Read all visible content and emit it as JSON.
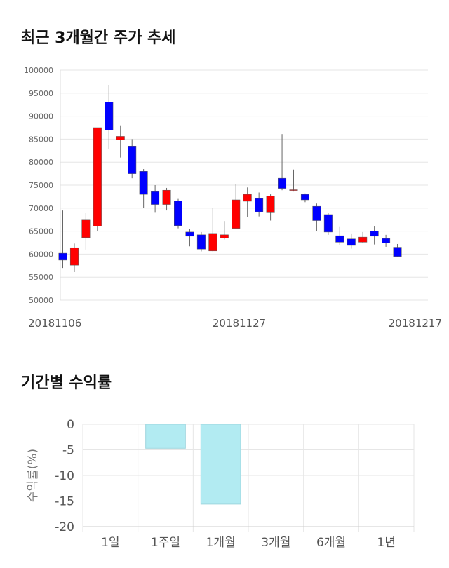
{
  "titles": {
    "price_trend": "최근 3개월간 주가 추세",
    "returns": "기간별 수익률"
  },
  "chart_data": [
    {
      "type": "candlestick",
      "title": "최근 3개월간 주가 추세",
      "ylim": [
        50000,
        100000
      ],
      "yticks": [
        50000,
        55000,
        60000,
        65000,
        70000,
        75000,
        80000,
        85000,
        90000,
        95000,
        100000
      ],
      "xtick_labels": [
        "20181106",
        "20181127",
        "20181217"
      ],
      "colors": {
        "up": "#ff0000",
        "down": "#0000ff",
        "wick": "#666666",
        "grid": "#e6e6e6"
      },
      "candles": [
        {
          "o": 60200,
          "h": 69500,
          "l": 57000,
          "c": 58700
        },
        {
          "o": 57600,
          "h": 62300,
          "l": 56100,
          "c": 61400
        },
        {
          "o": 63600,
          "h": 68900,
          "l": 61000,
          "c": 67400
        },
        {
          "o": 66100,
          "h": 87500,
          "l": 65000,
          "c": 87500
        },
        {
          "o": 93100,
          "h": 96800,
          "l": 82800,
          "c": 87000
        },
        {
          "o": 84800,
          "h": 88000,
          "l": 81000,
          "c": 85600
        },
        {
          "o": 83500,
          "h": 85000,
          "l": 76500,
          "c": 77500
        },
        {
          "o": 78000,
          "h": 78500,
          "l": 70000,
          "c": 73000
        },
        {
          "o": 73600,
          "h": 75000,
          "l": 69000,
          "c": 70800
        },
        {
          "o": 70800,
          "h": 74400,
          "l": 69500,
          "c": 73900
        },
        {
          "o": 71600,
          "h": 72000,
          "l": 65600,
          "c": 66200
        },
        {
          "o": 64800,
          "h": 65400,
          "l": 61700,
          "c": 63900
        },
        {
          "o": 64200,
          "h": 64800,
          "l": 60600,
          "c": 61100
        },
        {
          "o": 60700,
          "h": 70000,
          "l": 60600,
          "c": 64500
        },
        {
          "o": 63500,
          "h": 67200,
          "l": 63200,
          "c": 64200
        },
        {
          "o": 65600,
          "h": 75200,
          "l": 65400,
          "c": 71800
        },
        {
          "o": 71500,
          "h": 74500,
          "l": 68000,
          "c": 73000
        },
        {
          "o": 72100,
          "h": 73400,
          "l": 68200,
          "c": 69200
        },
        {
          "o": 69000,
          "h": 73000,
          "l": 67300,
          "c": 72600
        },
        {
          "o": 76500,
          "h": 86100,
          "l": 73900,
          "c": 74300
        },
        {
          "o": 74000,
          "h": 78400,
          "l": 73600,
          "c": 74000
        },
        {
          "o": 73000,
          "h": 73200,
          "l": 71300,
          "c": 71800
        },
        {
          "o": 70400,
          "h": 71000,
          "l": 65000,
          "c": 67300
        },
        {
          "o": 68600,
          "h": 68900,
          "l": 64200,
          "c": 64800
        },
        {
          "o": 64000,
          "h": 65900,
          "l": 62000,
          "c": 62600
        },
        {
          "o": 63300,
          "h": 64500,
          "l": 61200,
          "c": 61900
        },
        {
          "o": 62600,
          "h": 64800,
          "l": 62400,
          "c": 63700
        },
        {
          "o": 65000,
          "h": 66000,
          "l": 62100,
          "c": 63900
        },
        {
          "o": 63400,
          "h": 64200,
          "l": 61600,
          "c": 62400
        },
        {
          "o": 61500,
          "h": 62200,
          "l": 59300,
          "c": 59500
        }
      ]
    },
    {
      "type": "bar",
      "title": "기간별 수익률",
      "categories": [
        "1일",
        "1주일",
        "1개월",
        "3개월",
        "6개월",
        "1년"
      ],
      "values": [
        0,
        -4.7,
        -15.6,
        0,
        0,
        0
      ],
      "ylabel": "수익률(%)",
      "ylim": [
        -20,
        0
      ],
      "yticks": [
        0,
        -5,
        -10,
        -15,
        -20
      ],
      "colors": {
        "bar": "#b2ebf2",
        "bar_edge": "#9fd6de",
        "grid": "#e6e6e6"
      }
    }
  ]
}
